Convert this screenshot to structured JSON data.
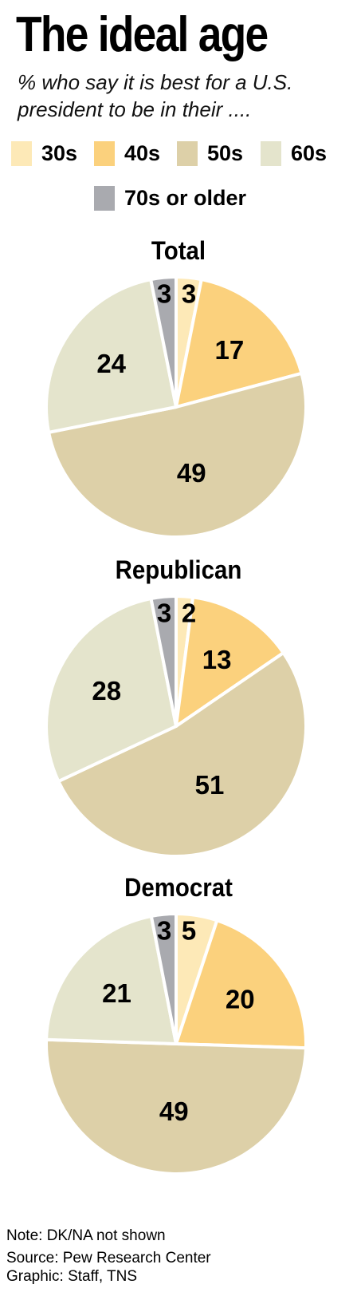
{
  "title": "The ideal age",
  "subtitle": "% who say it is best for a U.S. president to be in their ....",
  "colors": {
    "30s": "#fde9b7",
    "40s": "#fbd17d",
    "50s": "#ddd0a8",
    "60s": "#e4e4cc",
    "70s or older": "#a9aaaf"
  },
  "legend": [
    "30s",
    "40s",
    "50s",
    "60s",
    "70s or older"
  ],
  "chart_data": [
    {
      "type": "pie",
      "title": "Total",
      "categories": [
        "30s",
        "40s",
        "50s",
        "60s",
        "70s or older"
      ],
      "values": [
        3,
        17,
        49,
        24,
        3
      ]
    },
    {
      "type": "pie",
      "title": "Republican",
      "categories": [
        "30s",
        "40s",
        "50s",
        "60s",
        "70s or older"
      ],
      "values": [
        2,
        13,
        51,
        28,
        3
      ]
    },
    {
      "type": "pie",
      "title": "Democrat",
      "categories": [
        "30s",
        "40s",
        "50s",
        "60s",
        "70s or older"
      ],
      "values": [
        5,
        20,
        49,
        21,
        3
      ]
    }
  ],
  "notes": {
    "note": "Note: DK/NA not shown",
    "source": "Source: Pew Research Center",
    "credit": "Graphic: Staff, TNS"
  }
}
